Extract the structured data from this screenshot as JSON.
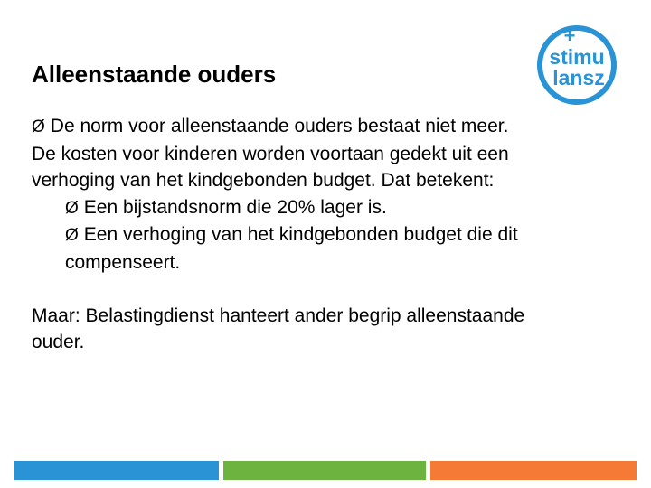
{
  "slide": {
    "title": "Alleenstaande ouders",
    "bullet_marker": "Ø",
    "bullet1_text": "De norm voor alleenstaande ouders bestaat niet meer. De kosten voor kinderen worden voortaan gedekt uit een verhoging van het kindgebonden budget. Dat betekent:",
    "sub_bullets": [
      "Een bijstandsnorm die 20% lager is.",
      "Een verhoging van het kindgebonden budget die dit compenseert."
    ],
    "closing_text": "Maar: Belastingdienst hanteert ander begrip alleenstaande ouder."
  },
  "logo": {
    "line1": "stimu",
    "line2": "lansz",
    "plus": "+",
    "color": "#2a93d5"
  },
  "footer_colors": {
    "blue": "#2a93d5",
    "green": "#6cb33f",
    "orange": "#f47a35"
  }
}
